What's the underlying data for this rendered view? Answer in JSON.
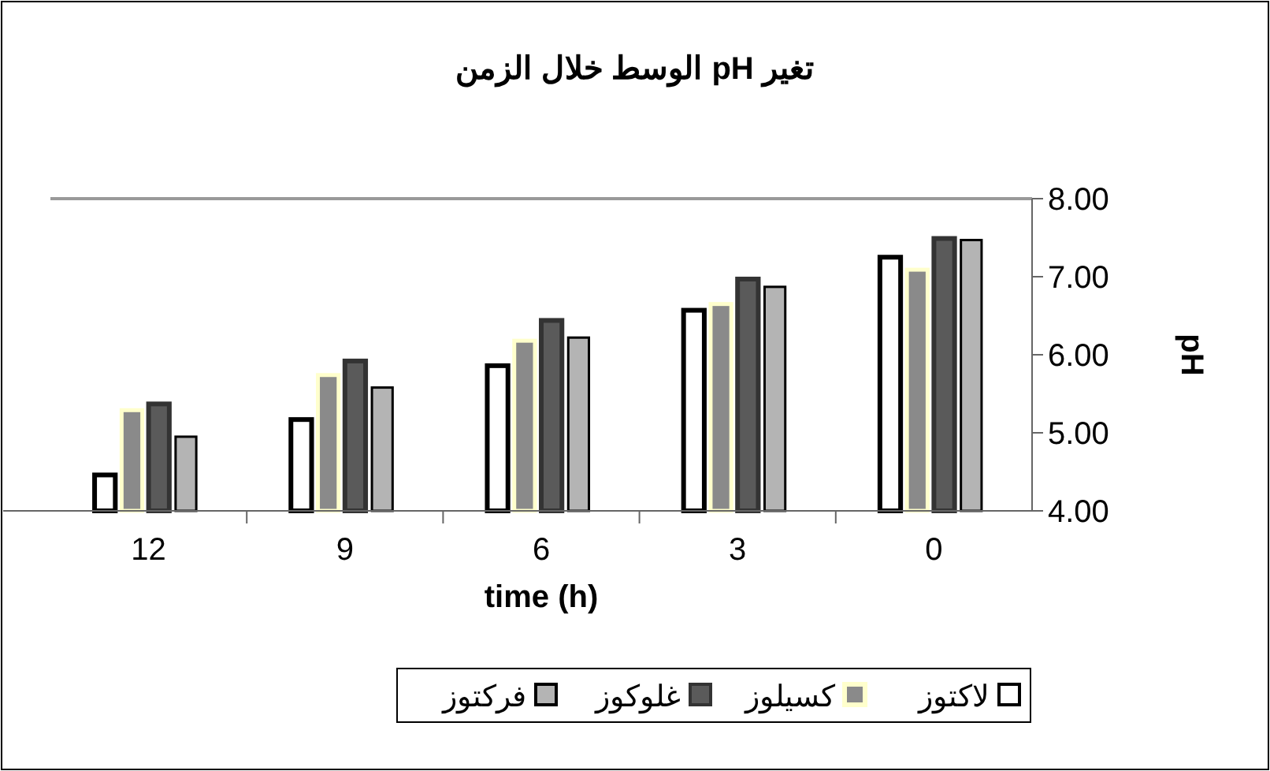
{
  "chart_data": {
    "type": "bar",
    "title": "تغير pH الوسط خلال الزمن",
    "xlabel": "time (h)",
    "ylabel": "pH",
    "categories": [
      "12",
      "9",
      "6",
      "3",
      "0"
    ],
    "series": [
      {
        "name": "لاكتوز",
        "color": "#ffffff",
        "values": [
          4.46,
          5.17,
          5.86,
          6.57,
          7.25
        ]
      },
      {
        "name": "كسيلوز",
        "color": "#8a8a8a",
        "values": [
          5.29,
          5.74,
          6.18,
          6.65,
          7.09
        ]
      },
      {
        "name": "غلوكوز",
        "color": "#5a5a5a",
        "values": [
          5.37,
          5.92,
          6.44,
          6.97,
          7.49
        ]
      },
      {
        "name": "فركتوز",
        "color": "#b4b4b4",
        "values": [
          4.95,
          5.58,
          6.22,
          6.87,
          7.47
        ]
      }
    ],
    "ylim": [
      4,
      8
    ],
    "yticks": [
      {
        "value": 4,
        "label": "4.00"
      },
      {
        "value": 5,
        "label": "5.00"
      },
      {
        "value": 6,
        "label": "6.00"
      },
      {
        "value": 7,
        "label": "7.00"
      },
      {
        "value": 8,
        "label": "8.00"
      }
    ],
    "grid": false,
    "legend": "bottom"
  }
}
